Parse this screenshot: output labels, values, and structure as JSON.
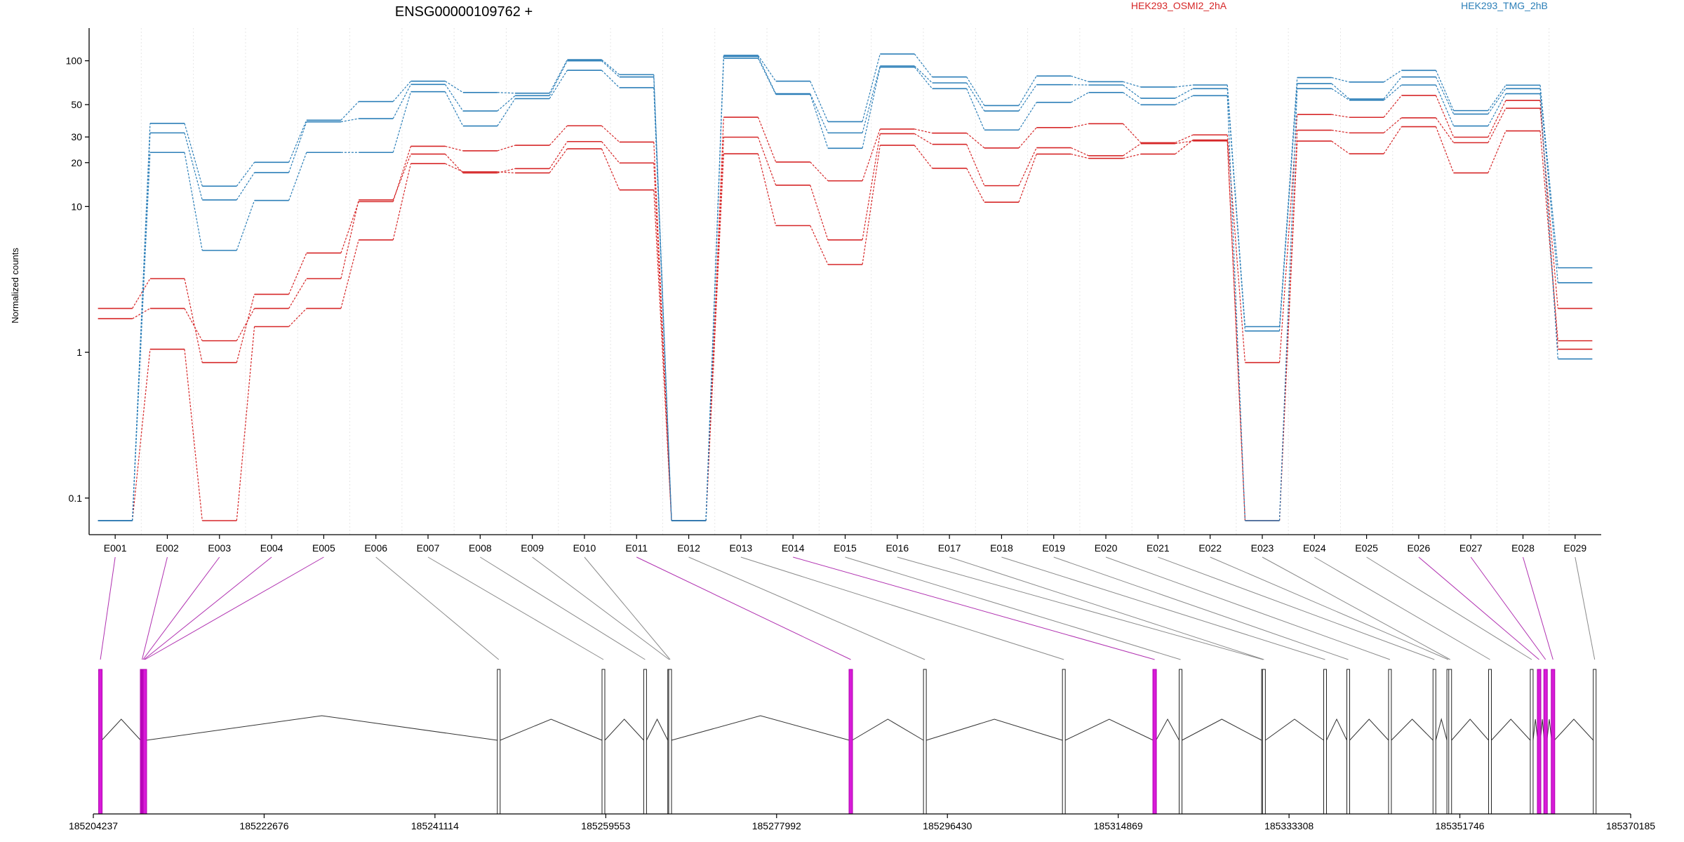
{
  "chart_data": {
    "type": "line",
    "title": "ENSG00000109762 +",
    "ylabel": "Normalized counts",
    "xlabel": "",
    "y_scale": "log",
    "ylim": [
      0.07,
      150
    ],
    "y_ticks": [
      0.1,
      1,
      10,
      20,
      30,
      50,
      100
    ],
    "y_tick_labels": [
      "0.1",
      "1",
      "10",
      "20",
      "30",
      "50",
      "100"
    ],
    "grid": "vertical dotted lines at exon boundaries",
    "legend": "top-right, colored text labels",
    "categories": [
      "E001",
      "E002",
      "E003",
      "E004",
      "E005",
      "E006",
      "E007",
      "E008",
      "E009",
      "E010",
      "E011",
      "E012",
      "E013",
      "E014",
      "E015",
      "E016",
      "E017",
      "E018",
      "E019",
      "E020",
      "E021",
      "E022",
      "E023",
      "E024",
      "E025",
      "E026",
      "E027",
      "E028",
      "E029"
    ],
    "groups": [
      {
        "name": "HEK293_OSMI2_2hA",
        "color": "#d62728"
      },
      {
        "name": "HEK293_TMG_2hB",
        "color": "#2c7fb8"
      }
    ],
    "series": [
      {
        "group": 0,
        "values": [
          2.0,
          3.2,
          0.85,
          2.5,
          4.8,
          10.8,
          25.9,
          24.1,
          26.3,
          35.8,
          27.7,
          0.07,
          41.0,
          20.2,
          15.0,
          34.0,
          31.9,
          25.2,
          34.8,
          37.0,
          27.4,
          31.0,
          0.85,
          42.8,
          40.9,
          57.8,
          29.9,
          53.4,
          1.05
        ]
      },
      {
        "group": 0,
        "values": [
          1.7,
          2.0,
          1.2,
          2.0,
          3.2,
          11.1,
          22.9,
          17.0,
          18.2,
          27.9,
          19.9,
          0.07,
          29.9,
          14.0,
          5.9,
          31.6,
          26.7,
          13.9,
          25.3,
          22.3,
          27.0,
          28.2,
          0.07,
          33.4,
          32.0,
          40.6,
          27.4,
          47.2,
          2.0
        ]
      },
      {
        "group": 0,
        "values": [
          0.07,
          1.05,
          0.07,
          1.5,
          2.0,
          5.9,
          19.7,
          17.3,
          17.0,
          24.9,
          13.0,
          0.07,
          23.0,
          7.4,
          4.0,
          26.3,
          18.3,
          10.7,
          22.9,
          21.4,
          22.9,
          28.6,
          0.07,
          28.1,
          23.0,
          35.3,
          17.0,
          33.0,
          1.2
        ]
      },
      {
        "group": 1,
        "values": [
          0.07,
          37.2,
          13.8,
          20.1,
          39.1,
          52.5,
          72.4,
          60.6,
          59.9,
          101.7,
          80.3,
          0.07,
          109.0,
          72.4,
          38.2,
          111.3,
          77.4,
          49.3,
          78.6,
          71.8,
          66.0,
          68.2,
          1.5,
          76.7,
          71.4,
          85.9,
          45.5,
          68.0,
          3.8
        ]
      },
      {
        "group": 1,
        "values": [
          0.07,
          32.0,
          11.1,
          17.1,
          38.1,
          40.1,
          68.8,
          45.2,
          57.6,
          99.9,
          77.4,
          0.07,
          106.9,
          59.4,
          32.0,
          92.1,
          70.5,
          45.2,
          68.5,
          68.2,
          55.3,
          64.4,
          1.4,
          69.7,
          54.7,
          77.4,
          43.1,
          64.4,
          3.0
        ]
      },
      {
        "group": 1,
        "values": [
          0.07,
          23.5,
          5.0,
          11.0,
          23.5,
          23.5,
          61.3,
          35.7,
          55.0,
          86.0,
          65.4,
          0.07,
          103.9,
          58.8,
          25.1,
          90.4,
          64.4,
          33.5,
          51.8,
          60.6,
          49.9,
          57.6,
          0.07,
          64.4,
          53.6,
          68.2,
          35.7,
          59.4,
          0.9
        ]
      }
    ],
    "exon_highlighted": [
      true,
      true,
      true,
      true,
      true,
      false,
      false,
      false,
      false,
      false,
      true,
      false,
      false,
      true,
      false,
      false,
      false,
      false,
      false,
      false,
      false,
      false,
      false,
      false,
      false,
      true,
      true,
      true,
      false
    ],
    "genomic_axis": {
      "start": 185204237,
      "end": 185370185,
      "tick_labels": [
        "185204237",
        "185222676",
        "185241114",
        "185259553",
        "185277992",
        "185296430",
        "185314869",
        "185333308",
        "185351746",
        "185370185"
      ]
    },
    "exon_positions": [
      185205000,
      185209500,
      185209600,
      185209700,
      185209800,
      185248000,
      185259300,
      185263800,
      185266400,
      185266500,
      185286000,
      185294000,
      185309000,
      185318800,
      185321600,
      185330500,
      185330600,
      185337200,
      185339700,
      185344200,
      185349000,
      185350500,
      185350700,
      185355000,
      185359500,
      185360300,
      185361000,
      185361800,
      185366300
    ]
  }
}
